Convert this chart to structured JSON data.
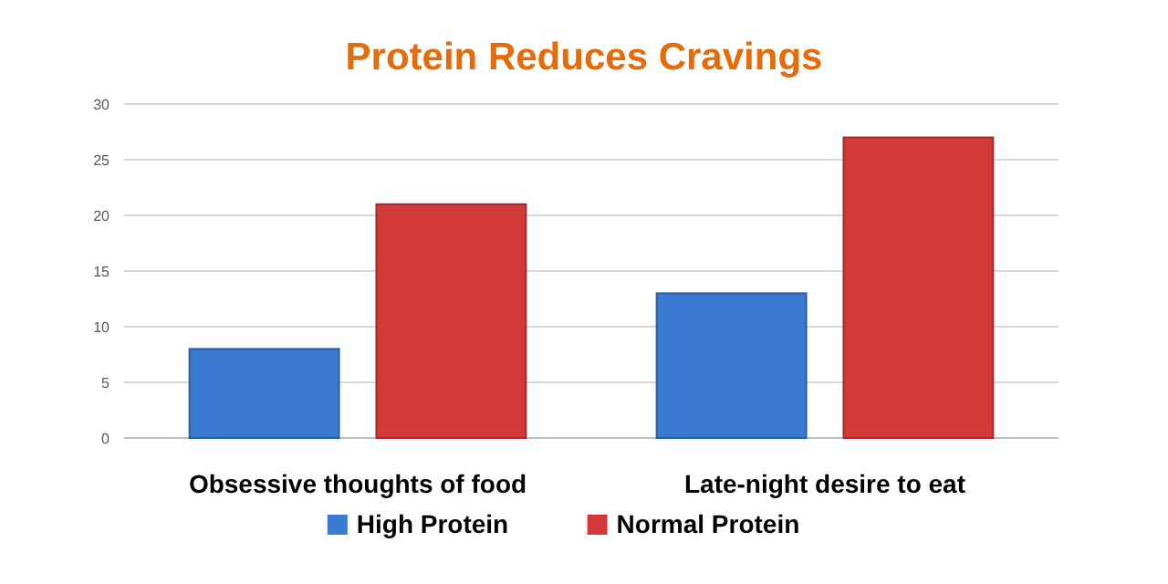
{
  "chart_data": {
    "type": "bar",
    "title": "Protein Reduces Cravings",
    "categories": [
      "Obsessive thoughts of food",
      "Late-night desire to eat"
    ],
    "series": [
      {
        "name": "High Protein",
        "color": "#3b7ad3",
        "values": [
          8,
          13
        ]
      },
      {
        "name": "Normal Protein",
        "color": "#d23a3a",
        "values": [
          21,
          27
        ]
      }
    ],
    "ylim": [
      0,
      30
    ],
    "yticks": [
      0,
      5,
      10,
      15,
      20,
      25,
      30
    ],
    "grid": "y",
    "legend": "bottom"
  }
}
